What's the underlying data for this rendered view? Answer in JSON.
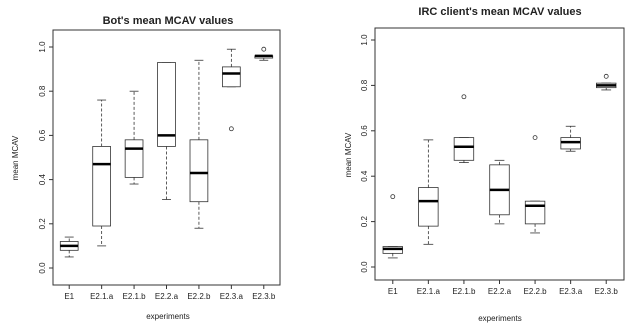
{
  "chart_data": [
    {
      "type": "boxplot",
      "title": "Bot's mean MCAV values",
      "xlabel": "experiments",
      "ylabel": "mean MCAV",
      "ylim": [
        0,
        1.0
      ],
      "yticks": [
        "0.0",
        "0.2",
        "0.4",
        "0.6",
        "0.8",
        "1.0"
      ],
      "categories": [
        "E1",
        "E2.1.a",
        "E2.1.b",
        "E2.2.a",
        "E2.2.b",
        "E2.3.a",
        "E2.3.b"
      ],
      "boxes": [
        {
          "label": "E1",
          "min": 0.05,
          "q1": 0.08,
          "median": 0.1,
          "q3": 0.12,
          "max": 0.14,
          "outliers": []
        },
        {
          "label": "E2.1.a",
          "min": 0.1,
          "q1": 0.19,
          "median": 0.47,
          "q3": 0.55,
          "max": 0.76,
          "outliers": []
        },
        {
          "label": "E2.1.b",
          "min": 0.38,
          "q1": 0.41,
          "median": 0.54,
          "q3": 0.58,
          "max": 0.8,
          "outliers": []
        },
        {
          "label": "E2.2.a",
          "min": 0.31,
          "q1": 0.55,
          "median": 0.6,
          "q3": 0.93,
          "max": 0.93,
          "outliers": []
        },
        {
          "label": "E2.2.b",
          "min": 0.18,
          "q1": 0.3,
          "median": 0.43,
          "q3": 0.58,
          "max": 0.94,
          "outliers": []
        },
        {
          "label": "E2.3.a",
          "min": 0.82,
          "q1": 0.82,
          "median": 0.88,
          "q3": 0.91,
          "max": 0.99,
          "outliers": [
            0.63
          ]
        },
        {
          "label": "E2.3.b",
          "min": 0.94,
          "q1": 0.95,
          "median": 0.96,
          "q3": 0.96,
          "max": 0.96,
          "outliers": [
            0.99
          ]
        }
      ]
    },
    {
      "type": "boxplot",
      "title": "IRC client's mean MCAV values",
      "xlabel": "experiments",
      "ylabel": "mean MCAV",
      "ylim": [
        0,
        1.0
      ],
      "yticks": [
        "0.0",
        "0.2",
        "0.4",
        "0.6",
        "0.8",
        "1.0"
      ],
      "categories": [
        "E1",
        "E2.1.a",
        "E2.1.b",
        "E2.2.a",
        "E2.2.b",
        "E2.3.a",
        "E2.3.b"
      ],
      "boxes": [
        {
          "label": "E1",
          "min": 0.04,
          "q1": 0.06,
          "median": 0.08,
          "q3": 0.09,
          "max": 0.09,
          "outliers": [
            0.31
          ]
        },
        {
          "label": "E2.1.a",
          "min": 0.1,
          "q1": 0.18,
          "median": 0.29,
          "q3": 0.35,
          "max": 0.56,
          "outliers": []
        },
        {
          "label": "E2.1.b",
          "min": 0.46,
          "q1": 0.47,
          "median": 0.53,
          "q3": 0.57,
          "max": 0.57,
          "outliers": [
            0.75
          ]
        },
        {
          "label": "E2.2.a",
          "min": 0.19,
          "q1": 0.23,
          "median": 0.34,
          "q3": 0.45,
          "max": 0.47,
          "outliers": []
        },
        {
          "label": "E2.2.b",
          "min": 0.15,
          "q1": 0.19,
          "median": 0.27,
          "q3": 0.29,
          "max": 0.29,
          "outliers": [
            0.57
          ]
        },
        {
          "label": "E2.3.a",
          "min": 0.51,
          "q1": 0.52,
          "median": 0.55,
          "q3": 0.57,
          "max": 0.62,
          "outliers": []
        },
        {
          "label": "E2.3.b",
          "min": 0.78,
          "q1": 0.79,
          "median": 0.8,
          "q3": 0.81,
          "max": 0.81,
          "outliers": [
            0.84
          ]
        }
      ]
    }
  ]
}
